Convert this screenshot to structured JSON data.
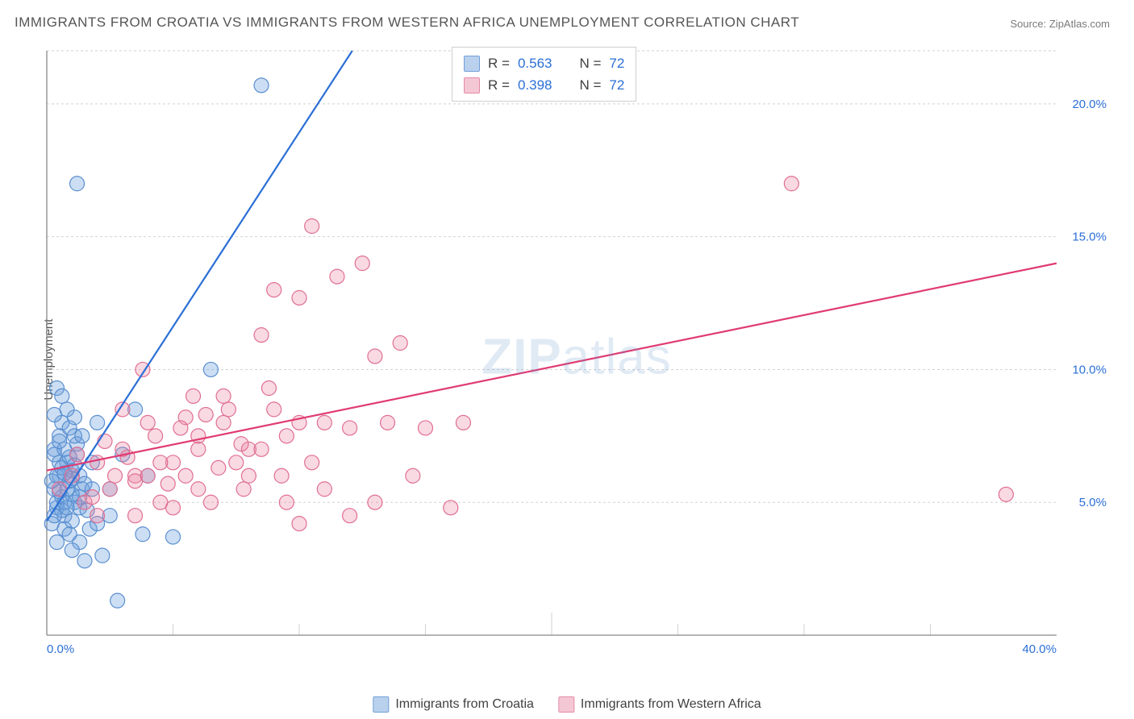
{
  "title": "IMMIGRANTS FROM CROATIA VS IMMIGRANTS FROM WESTERN AFRICA UNEMPLOYMENT CORRELATION CHART",
  "source": "Source: ZipAtlas.com",
  "watermark_bold": "ZIP",
  "watermark_rest": "atlas",
  "ylabel": "Unemployment",
  "chart": {
    "type": "scatter",
    "background_color": "#ffffff",
    "grid_color": "#d2d2d2",
    "grid_dash": "3,3",
    "axis_color": "#888888",
    "tick_font_color": "#2b6fd6",
    "tick_fontsize": 15,
    "xlim": [
      0,
      40
    ],
    "ylim": [
      0,
      22
    ],
    "xticks": [
      0,
      40
    ],
    "yticks": [
      5,
      10,
      15,
      20
    ],
    "xtick_labels": [
      "0.0%",
      "40.0%"
    ],
    "ytick_labels": [
      "5.0%",
      "10.0%",
      "15.0%",
      "20.0%"
    ],
    "minor_vgrid": [
      5,
      10,
      15,
      20,
      25,
      30,
      35
    ],
    "marker_radius": 9,
    "marker_stroke_width": 1.2,
    "trend_line_width": 2.2
  },
  "series": [
    {
      "name": "Immigrants from Croatia",
      "legend_key": "legend_croatia",
      "fill": "rgba(110,160,220,0.35)",
      "stroke": "#5a8fd0",
      "swatch_fill": "#b9d1ed",
      "swatch_border": "#6f9fd8",
      "trend": {
        "x1": 0,
        "y1": 4.3,
        "x2": 12.1,
        "y2": 22,
        "color": "#2b6fd6"
      },
      "points": [
        [
          0.2,
          4.2
        ],
        [
          0.3,
          5.5
        ],
        [
          0.4,
          4.8
        ],
        [
          0.5,
          6.0
        ],
        [
          0.3,
          7.0
        ],
        [
          0.6,
          5.2
        ],
        [
          0.7,
          4.5
        ],
        [
          0.8,
          6.5
        ],
        [
          0.4,
          3.5
        ],
        [
          0.9,
          5.8
        ],
        [
          0.5,
          7.5
        ],
        [
          1.0,
          6.2
        ],
        [
          0.6,
          8.0
        ],
        [
          1.1,
          5.0
        ],
        [
          0.7,
          4.0
        ],
        [
          1.2,
          7.2
        ],
        [
          0.3,
          6.8
        ],
        [
          0.8,
          5.5
        ],
        [
          1.3,
          6.0
        ],
        [
          0.4,
          5.0
        ],
        [
          0.9,
          7.8
        ],
        [
          1.0,
          4.3
        ],
        [
          0.2,
          5.8
        ],
        [
          1.1,
          8.2
        ],
        [
          0.5,
          6.5
        ],
        [
          1.4,
          5.5
        ],
        [
          0.6,
          4.7
        ],
        [
          0.7,
          7.0
        ],
        [
          1.2,
          6.8
        ],
        [
          0.3,
          4.5
        ],
        [
          0.8,
          8.5
        ],
        [
          0.4,
          6.0
        ],
        [
          1.0,
          5.3
        ],
        [
          0.5,
          7.3
        ],
        [
          1.3,
          4.8
        ],
        [
          0.6,
          6.3
        ],
        [
          1.5,
          5.7
        ],
        [
          0.7,
          5.0
        ],
        [
          0.9,
          6.7
        ],
        [
          1.1,
          7.5
        ],
        [
          1.7,
          4.0
        ],
        [
          2.0,
          4.2
        ],
        [
          2.5,
          4.5
        ],
        [
          1.8,
          5.5
        ],
        [
          1.3,
          3.5
        ],
        [
          1.0,
          3.2
        ],
        [
          1.5,
          2.8
        ],
        [
          2.2,
          3.0
        ],
        [
          0.4,
          9.3
        ],
        [
          0.6,
          9.0
        ],
        [
          2.0,
          8.0
        ],
        [
          3.5,
          8.5
        ],
        [
          3.0,
          6.8
        ],
        [
          4.0,
          6.0
        ],
        [
          5.0,
          3.7
        ],
        [
          3.8,
          3.8
        ],
        [
          2.5,
          5.5
        ],
        [
          6.5,
          10.0
        ],
        [
          1.2,
          17.0
        ],
        [
          8.5,
          20.7
        ],
        [
          2.8,
          1.3
        ],
        [
          1.8,
          6.5
        ],
        [
          0.3,
          8.3
        ],
        [
          0.8,
          4.8
        ],
        [
          1.0,
          5.9
        ],
        [
          1.4,
          7.5
        ],
        [
          0.9,
          3.8
        ],
        [
          1.6,
          4.7
        ],
        [
          0.5,
          5.4
        ],
        [
          1.1,
          6.4
        ],
        [
          0.7,
          6.1
        ],
        [
          1.3,
          5.2
        ]
      ]
    },
    {
      "name": "Immigrants from Western Africa",
      "legend_key": "legend_wafrica",
      "fill": "rgba(235,130,160,0.30)",
      "stroke": "#e06f94",
      "swatch_fill": "#f4c7d4",
      "swatch_border": "#e58aa8",
      "trend": {
        "x1": 0,
        "y1": 6.2,
        "x2": 40,
        "y2": 14.0,
        "color": "#e03b72"
      },
      "points": [
        [
          0.5,
          5.5
        ],
        [
          1.0,
          6.0
        ],
        [
          1.5,
          5.0
        ],
        [
          2.0,
          6.5
        ],
        [
          2.5,
          5.5
        ],
        [
          3.0,
          7.0
        ],
        [
          3.5,
          6.0
        ],
        [
          4.0,
          8.0
        ],
        [
          2.0,
          4.5
        ],
        [
          5.0,
          6.5
        ],
        [
          4.5,
          5.0
        ],
        [
          6.0,
          7.5
        ],
        [
          5.5,
          6.0
        ],
        [
          7.0,
          8.0
        ],
        [
          3.5,
          4.5
        ],
        [
          8.0,
          7.0
        ],
        [
          6.5,
          5.0
        ],
        [
          7.5,
          6.5
        ],
        [
          4.0,
          6.0
        ],
        [
          9.0,
          8.5
        ],
        [
          5.0,
          4.8
        ],
        [
          8.5,
          7.0
        ],
        [
          6.0,
          5.5
        ],
        [
          10.0,
          8.0
        ],
        [
          3.8,
          10.0
        ],
        [
          5.5,
          8.2
        ],
        [
          7.0,
          9.0
        ],
        [
          6.0,
          7.0
        ],
        [
          8.0,
          6.0
        ],
        [
          9.5,
          7.5
        ],
        [
          4.5,
          6.5
        ],
        [
          7.8,
          5.5
        ],
        [
          3.0,
          8.5
        ],
        [
          10.5,
          6.5
        ],
        [
          11.0,
          8.0
        ],
        [
          12.0,
          7.8
        ],
        [
          9.0,
          13.0
        ],
        [
          10.5,
          15.4
        ],
        [
          10.0,
          12.7
        ],
        [
          12.5,
          14.0
        ],
        [
          11.5,
          13.5
        ],
        [
          8.5,
          11.3
        ],
        [
          13.0,
          10.5
        ],
        [
          14.0,
          11.0
        ],
        [
          13.5,
          8.0
        ],
        [
          15.0,
          7.8
        ],
        [
          14.5,
          6.0
        ],
        [
          16.0,
          4.8
        ],
        [
          16.5,
          8.0
        ],
        [
          13.0,
          5.0
        ],
        [
          12.0,
          4.5
        ],
        [
          11.0,
          5.5
        ],
        [
          10.0,
          4.2
        ],
        [
          9.5,
          5.0
        ],
        [
          29.5,
          17.0
        ],
        [
          38.0,
          5.3
        ],
        [
          1.2,
          6.8
        ],
        [
          2.3,
          7.3
        ],
        [
          3.5,
          5.8
        ],
        [
          5.8,
          9.0
        ],
        [
          7.2,
          8.5
        ],
        [
          8.8,
          9.3
        ],
        [
          4.3,
          7.5
        ],
        [
          6.8,
          6.3
        ],
        [
          1.8,
          5.2
        ],
        [
          2.7,
          6.0
        ],
        [
          3.2,
          6.7
        ],
        [
          4.8,
          5.7
        ],
        [
          5.3,
          7.8
        ],
        [
          6.3,
          8.3
        ],
        [
          7.7,
          7.2
        ],
        [
          9.3,
          6.0
        ]
      ]
    }
  ],
  "stats": {
    "rows": [
      {
        "series": 0,
        "R_label": "R =",
        "R": "0.563",
        "N_label": "N =",
        "N": "72"
      },
      {
        "series": 1,
        "R_label": "R =",
        "R": "0.398",
        "N_label": "N =",
        "N": "72"
      }
    ]
  },
  "legend_croatia": "Immigrants from Croatia",
  "legend_wafrica": "Immigrants from Western Africa"
}
